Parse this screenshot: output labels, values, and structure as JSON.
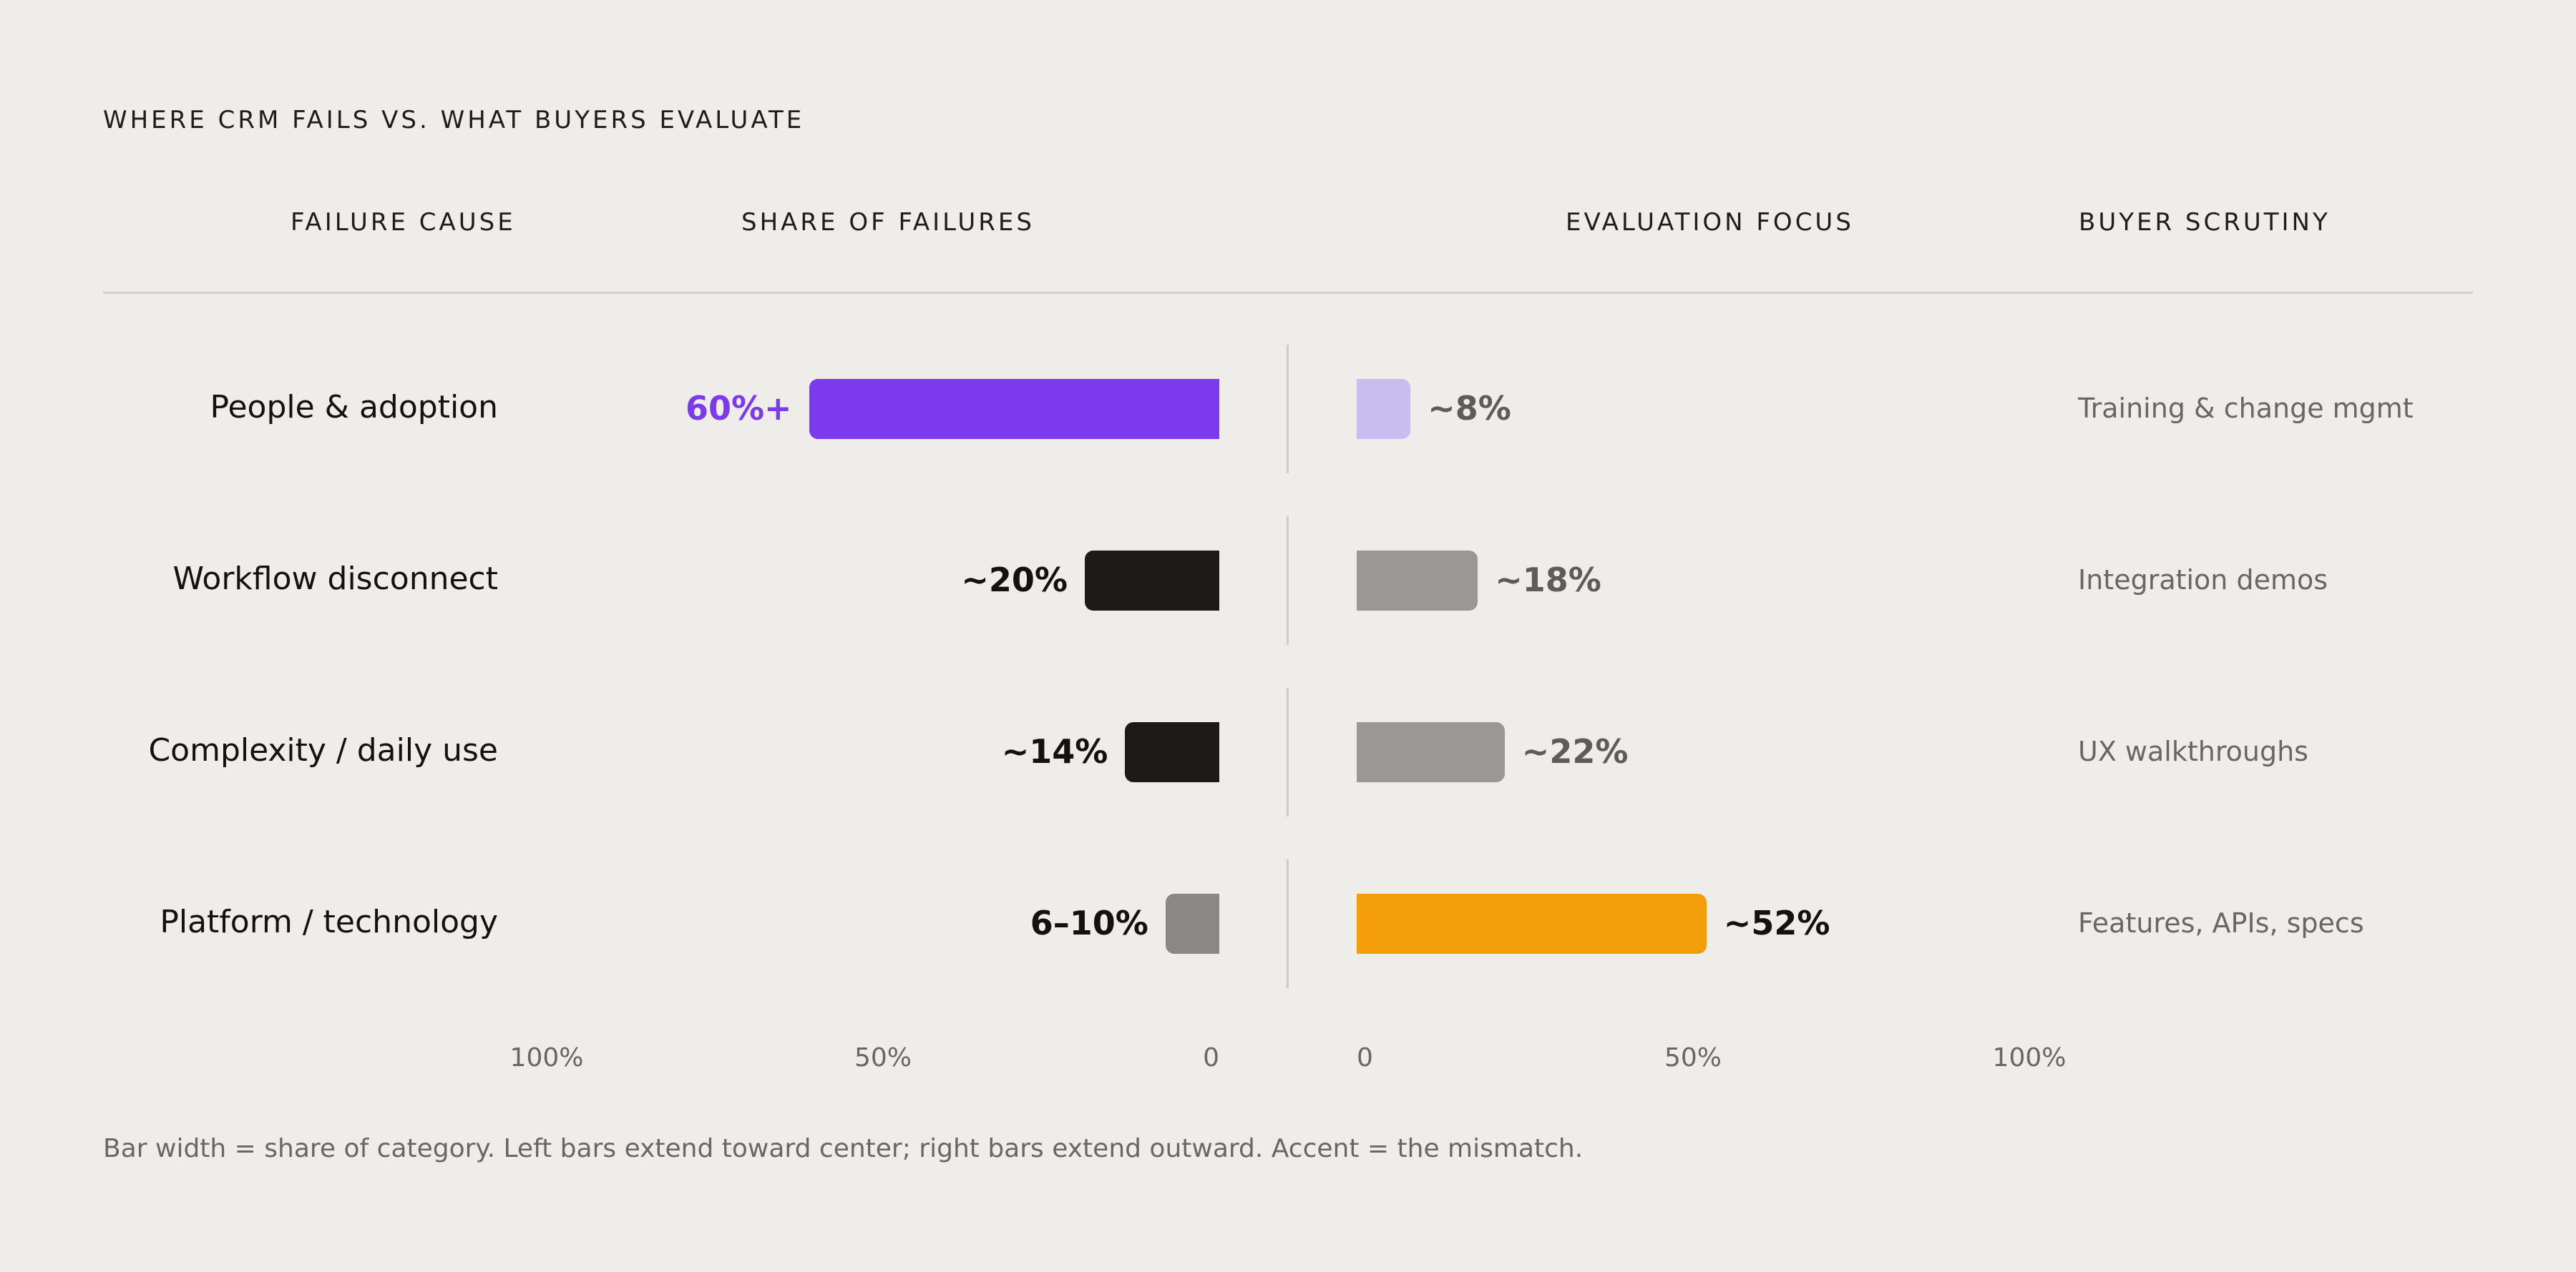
{
  "chart_data": {
    "type": "bar",
    "title": "WHERE CRM FAILS VS. WHAT BUYERS EVALUATE",
    "column_headers": {
      "failure_cause": "FAILURE CAUSE",
      "share_of_failures": "SHARE OF FAILURES",
      "evaluation_focus": "EVALUATION FOCUS",
      "buyer_scrutiny": "BUYER SCRUTINY"
    },
    "categories": [
      "People & adoption",
      "Workflow disconnect",
      "Complexity / daily use",
      "Platform / technology"
    ],
    "series": [
      {
        "name": "SHARE OF FAILURES",
        "direction": "left",
        "values": [
          61,
          20,
          14,
          8
        ],
        "labels": [
          "60%+",
          "~20%",
          "~14%",
          "6–10%"
        ],
        "colors": [
          "#7c3aed",
          "#1d1a17",
          "#1d1a17",
          "#8a8884"
        ],
        "label_colors": [
          "#7c3aed",
          "#141210",
          "#141210",
          "#141210"
        ]
      },
      {
        "name": "EVALUATION FOCUS",
        "direction": "right",
        "values": [
          8,
          18,
          22,
          52
        ],
        "labels": [
          "~8%",
          "~18%",
          "~22%",
          "~52%"
        ],
        "colors": [
          "#c9bdf0",
          "#9a9894",
          "#9a9894",
          "#f59e0b"
        ],
        "label_colors": [
          "#5f5c58",
          "#5f5c58",
          "#5f5c58",
          "#141210"
        ]
      }
    ],
    "buyer_scrutiny": [
      "Training & change mgmt",
      "Integration demos",
      "UX walkthroughs",
      "Features, APIs, specs"
    ],
    "left_axis_ticks": [
      "100%",
      "50%",
      "0"
    ],
    "right_axis_ticks": [
      "0",
      "50%",
      "100%"
    ],
    "xlim": [
      0,
      100
    ],
    "grid": false,
    "footnote": "Bar width = share of category. Left bars extend toward center; right bars extend outward. Accent = the mismatch."
  }
}
